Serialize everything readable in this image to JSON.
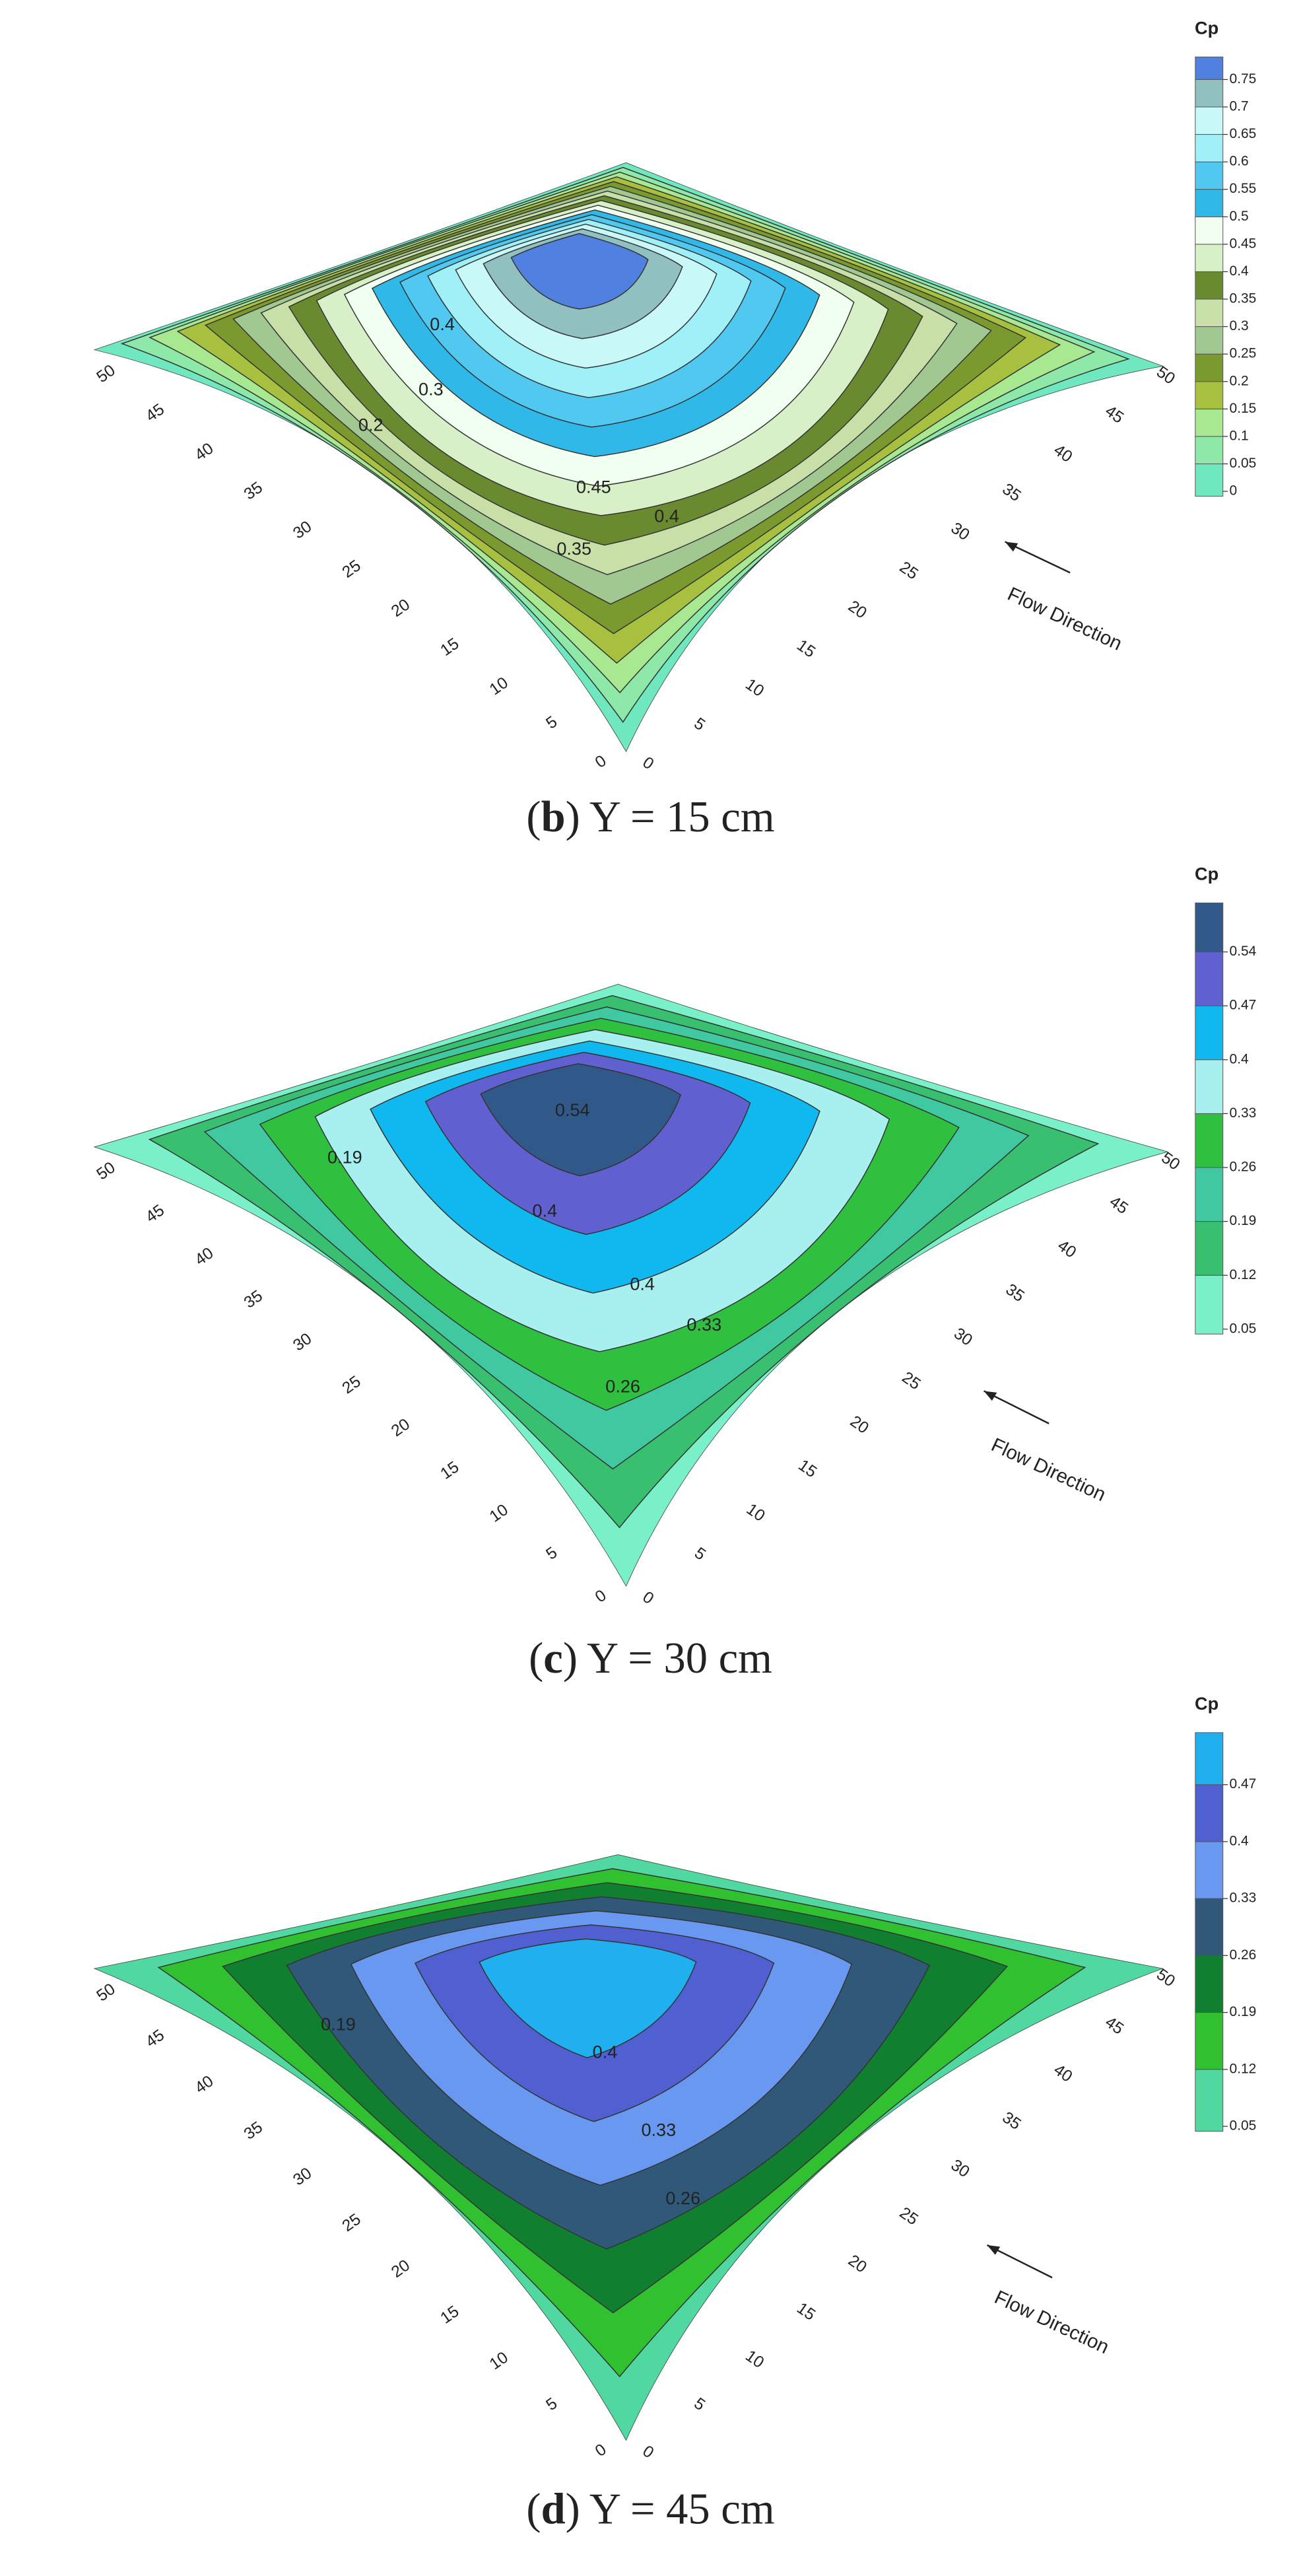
{
  "chart_data": [
    {
      "type": "surface3d",
      "caption": {
        "open": "(",
        "letter": "b",
        "rest": ") Y = 15 cm"
      },
      "flow_label": "Flow Direction",
      "xticks": [
        0,
        5,
        10,
        15,
        20,
        25,
        30,
        35,
        40,
        45,
        50
      ],
      "yticks": [
        0,
        5,
        10,
        15,
        20,
        25,
        30,
        35,
        40,
        45,
        50
      ],
      "colorbar": {
        "title": "Cp",
        "ticks": [
          0,
          0.05,
          0.1,
          0.15,
          0.2,
          0.25,
          0.3,
          0.35,
          0.4,
          0.45,
          0.5,
          0.55,
          0.6,
          0.65,
          0.7,
          0.75
        ],
        "colors": [
          "#6fe8c0",
          "#8ee8a8",
          "#a8e890",
          "#a8c040",
          "#7a9a30",
          "#a0c890",
          "#c8e0a8",
          "#6a8a30",
          "#d8f0c8",
          "#f0fff0",
          "#30b8e8",
          "#50c8f0",
          "#a0f0f8",
          "#c8f8f8",
          "#90c0c0",
          "#5080e0"
        ]
      },
      "contour_labels": [
        0.45,
        0.4,
        0.35,
        0.4,
        0.3,
        0.2
      ]
    },
    {
      "type": "surface3d",
      "caption": {
        "open": "(",
        "letter": "c",
        "rest": ") Y = 30 cm"
      },
      "flow_label": "Flow Direction",
      "xticks": [
        0,
        5,
        10,
        15,
        20,
        25,
        30,
        35,
        40,
        45,
        50
      ],
      "yticks": [
        0,
        5,
        10,
        15,
        20,
        25,
        30,
        35,
        40,
        45,
        50
      ],
      "colorbar": {
        "title": "Cp",
        "ticks": [
          0.05,
          0.12,
          0.19,
          0.26,
          0.33,
          0.4,
          0.47,
          0.54
        ],
        "colors": [
          "#7af0c8",
          "#38c070",
          "#40c8a0",
          "#30c040",
          "#a8f0f0",
          "#10b8f0",
          "#6060d0",
          "#305888"
        ]
      },
      "contour_labels": [
        0.54,
        0.4,
        0.4,
        0.33,
        0.26,
        0.19
      ]
    },
    {
      "type": "surface3d",
      "caption": {
        "open": "(",
        "letter": "d",
        "rest": ") Y = 45 cm"
      },
      "flow_label": "Flow Direction",
      "xticks": [
        0,
        5,
        10,
        15,
        20,
        25,
        30,
        35,
        40,
        45,
        50
      ],
      "yticks": [
        0,
        5,
        10,
        15,
        20,
        25,
        30,
        35,
        40,
        45,
        50
      ],
      "colorbar": {
        "title": "Cp",
        "ticks": [
          0.05,
          0.12,
          0.19,
          0.26,
          0.33,
          0.4,
          0.47
        ],
        "colors": [
          "#50d8a0",
          "#30c030",
          "#108030",
          "#305878",
          "#6898f0",
          "#5060d0",
          "#20b0f0"
        ]
      },
      "contour_labels": [
        0.4,
        0.33,
        0.26,
        0.19
      ]
    }
  ]
}
